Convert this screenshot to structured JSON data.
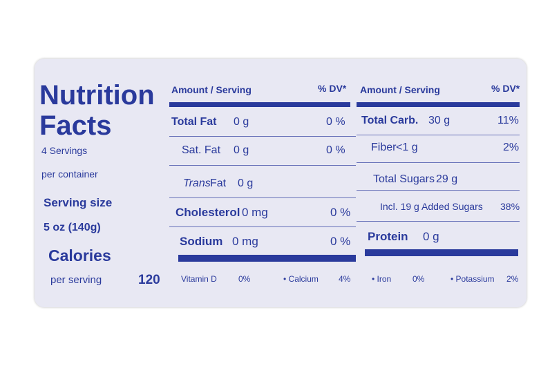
{
  "header": {
    "title_line1": "Nutrition",
    "title_line2": "Facts",
    "servings": "4 Servings",
    "servings_unit": "per container",
    "serving_size_label": "Serving size",
    "serving_size": "5 oz (140g)",
    "calories_label": "Calories",
    "calories_unit": "per serving",
    "calories": "120"
  },
  "left_table": {
    "amount_header": "Amount / Serving",
    "dv_header": "% DV*",
    "rows": [
      [
        "Total Fat",
        "0 g",
        "0 %"
      ],
      [
        "Sat. Fat",
        "0 g",
        "0 %"
      ],
      [
        "Trans",
        "Fat",
        "0 g"
      ],
      [
        "Cholesterol",
        "0 mg",
        "0 %"
      ],
      [
        "Sodium",
        "0 mg",
        "0 %"
      ]
    ]
  },
  "right_table": {
    "amount_header": "Amount / Serving",
    "dv_header": "% DV*",
    "rows": [
      [
        "Total Carb.",
        "30 g",
        "11%"
      ],
      [
        "Fiber",
        "<1 g",
        "2%"
      ],
      [
        "Total Sugars",
        "29 g"
      ],
      [
        "Incl. 19 g",
        "Added Sugars",
        "38%"
      ],
      [
        "Protein",
        "0 g"
      ]
    ]
  },
  "footer": [
    [
      "Vitamin D",
      "0%"
    ],
    [
      "• Calcium",
      "4%"
    ],
    [
      "• Iron",
      "0%"
    ],
    [
      "• Potassium",
      "2%"
    ]
  ]
}
